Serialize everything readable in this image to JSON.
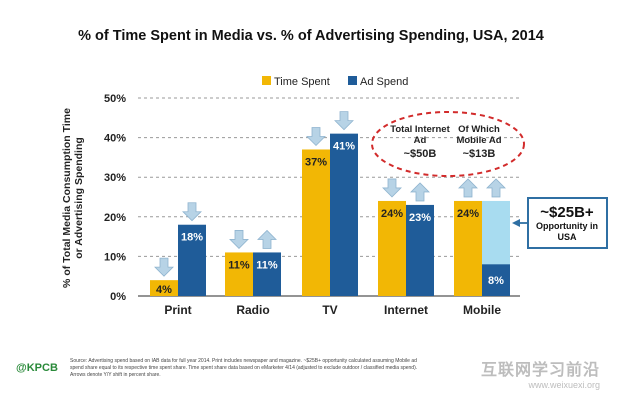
{
  "colors": {
    "time_spent": "#f2b705",
    "ad_spend": "#1f5c99",
    "opportunity": "#a8dcf0",
    "arrow": "#b7d3e6",
    "dashed": "#d22b2b"
  },
  "chart_data": {
    "type": "bar",
    "title": "% of Time Spent in Media vs. % of Advertising Spending, USA, 2014",
    "ylabel": "% of Total Media Consumption Time or Advertising Spending",
    "ylim": [
      0,
      50
    ],
    "yticks": [
      "0%",
      "10%",
      "20%",
      "30%",
      "40%",
      "50%"
    ],
    "categories": [
      "Print",
      "Radio",
      "TV",
      "Internet",
      "Mobile"
    ],
    "series": [
      {
        "name": "Time Spent",
        "values": [
          4,
          11,
          37,
          24,
          24
        ],
        "labels": [
          "4%",
          "11%",
          "37%",
          "24%",
          "24%"
        ],
        "arrows": [
          "down",
          "down",
          "down",
          "down",
          "up"
        ]
      },
      {
        "name": "Ad Spend",
        "values": [
          18,
          11,
          41,
          23,
          8
        ],
        "labels": [
          "18%",
          "11%",
          "41%",
          "23%",
          "8%"
        ],
        "arrows": [
          "down",
          "up",
          "down",
          "up",
          "up"
        ]
      }
    ],
    "opportunity_top": 24,
    "legend_position": "top",
    "grid": true
  },
  "callout": {
    "internet_title": "Total Internet Ad",
    "internet_value": "~$50B",
    "mobile_title": "Of Which Mobile Ad",
    "mobile_value": "~$13B"
  },
  "opportunity": {
    "amount": "~$25B+",
    "label": "Opportunity in USA"
  },
  "footer": {
    "logo": "@KPCB",
    "source": "Source: Advertising spend based on IAB data for full year 2014. Print includes newspaper and magazine. ~$25B+ opportunity calculated assuming Mobile ad spend share equal to its respective time spent share. Time spent share data based on eMarketer 4/14 (adjusted to exclude outdoor / classified media spend). Arrows denote Y/Y shift in percent share."
  },
  "watermark": {
    "text": "互联网学习前沿",
    "url": "www.weixuexi.org"
  }
}
